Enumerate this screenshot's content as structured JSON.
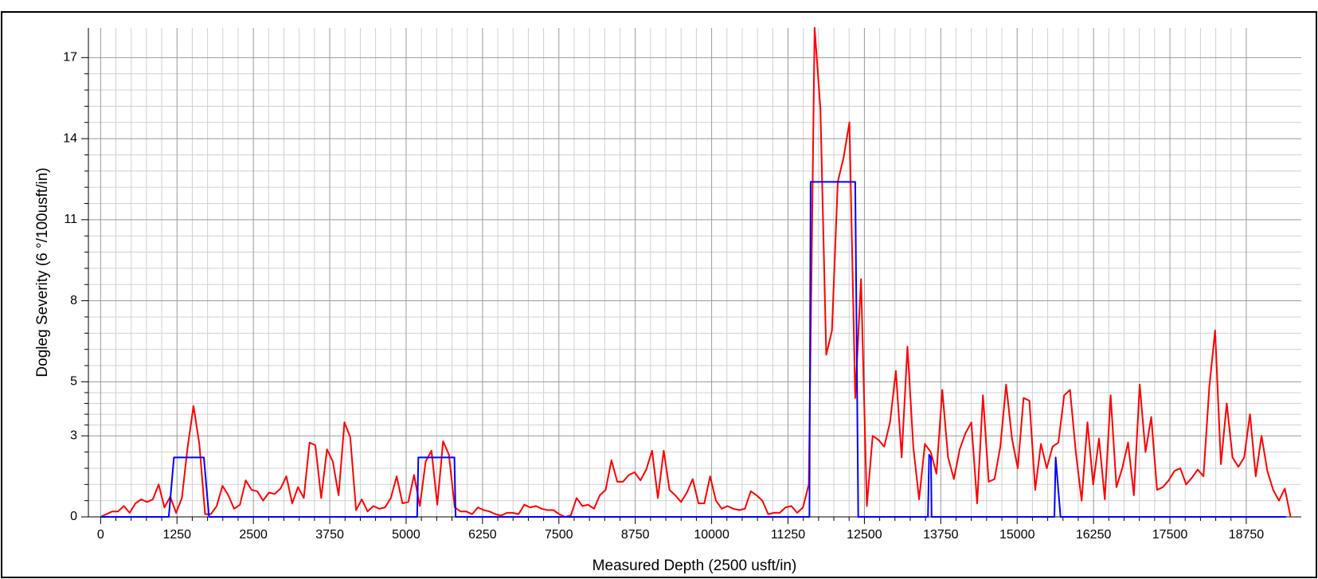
{
  "chart_data": {
    "type": "line",
    "xlabel": "Measured Depth (2500 usft/in)",
    "ylabel": "Dogleg Severity (6 °/100usft/in)",
    "xlim": [
      -200,
      19650
    ],
    "ylim": [
      0,
      18.1
    ],
    "xticks": [
      0,
      1250,
      2500,
      3750,
      5000,
      6250,
      7500,
      8750,
      10000,
      11250,
      12500,
      13750,
      15000,
      16250,
      17500,
      18750
    ],
    "yticks": [
      0,
      3,
      5,
      8,
      11,
      14,
      17
    ],
    "grid": true,
    "series": [
      {
        "color": "#ff0000",
        "x": [
          0,
          95,
          190,
          285,
          380,
          475,
          570,
          665,
          760,
          855,
          950,
          1045,
          1140,
          1235,
          1330,
          1425,
          1520,
          1615,
          1710,
          1805,
          1900,
          1995,
          2090,
          2185,
          2280,
          2375,
          2470,
          2565,
          2660,
          2755,
          2850,
          2945,
          3040,
          3135,
          3230,
          3325,
          3420,
          3515,
          3610,
          3705,
          3800,
          3895,
          3990,
          4085,
          4180,
          4275,
          4370,
          4465,
          4560,
          4655,
          4750,
          4845,
          4940,
          5035,
          5130,
          5225,
          5320,
          5415,
          5510,
          5605,
          5700,
          5795,
          5890,
          5985,
          6080,
          6175,
          6270,
          6365,
          6460,
          6555,
          6650,
          6745,
          6840,
          6935,
          7030,
          7125,
          7220,
          7315,
          7410,
          7505,
          7600,
          7695,
          7790,
          7885,
          7980,
          8075,
          8170,
          8265,
          8360,
          8455,
          8550,
          8645,
          8740,
          8835,
          8930,
          9025,
          9120,
          9215,
          9310,
          9405,
          9500,
          9595,
          9690,
          9785,
          9880,
          9975,
          10070,
          10165,
          10260,
          10355,
          10450,
          10545,
          10640,
          10735,
          10830,
          10925,
          11020,
          11115,
          11210,
          11305,
          11400,
          11495,
          11590,
          11685,
          11780,
          11875,
          11970,
          12065,
          12160,
          12255,
          12350,
          12445,
          12540,
          12635,
          12730,
          12825,
          12920,
          13015,
          13110,
          13205,
          13300,
          13395,
          13490,
          13585,
          13680,
          13775,
          13870,
          13965,
          14060,
          14155,
          14250,
          14345,
          14440,
          14535,
          14630,
          14725,
          14820,
          14915,
          15010,
          15105,
          15200,
          15295,
          15390,
          15485,
          15580,
          15675,
          15770,
          15865,
          15960,
          16055,
          16150,
          16245,
          16340,
          16435,
          16530,
          16625,
          16720,
          16815,
          16910,
          17005,
          17100,
          17195,
          17290,
          17385,
          17480,
          17575,
          17670,
          17765,
          17860,
          17955,
          18050,
          18145,
          18240,
          18335,
          18430,
          18525,
          18620,
          18715,
          18810,
          18905,
          19000,
          19095,
          19190,
          19285,
          19380,
          19475
        ],
        "values": [
          0,
          0.1,
          0.2,
          0.2,
          0.4,
          0.15,
          0.5,
          0.65,
          0.55,
          0.65,
          1.2,
          0.35,
          0.75,
          0.15,
          0.7,
          2.6,
          4.1,
          2.7,
          0.1,
          0.1,
          0.4,
          1.15,
          0.8,
          0.3,
          0.45,
          1.35,
          1.0,
          0.95,
          0.6,
          0.9,
          0.85,
          1.05,
          1.5,
          0.5,
          1.1,
          0.7,
          2.75,
          2.65,
          0.7,
          2.5,
          2.05,
          0.8,
          3.5,
          2.95,
          0.25,
          0.65,
          0.2,
          0.4,
          0.3,
          0.35,
          0.7,
          1.5,
          0.5,
          0.55,
          1.55,
          0.4,
          2.05,
          2.45,
          0.45,
          2.8,
          2.3,
          0.35,
          0.2,
          0.2,
          0.1,
          0.35,
          0.25,
          0.2,
          0.1,
          0.05,
          0.15,
          0.15,
          0.1,
          0.45,
          0.35,
          0.4,
          0.3,
          0.25,
          0.25,
          0.1,
          0,
          0.05,
          0.7,
          0.4,
          0.45,
          0.3,
          0.8,
          1.0,
          2.1,
          1.3,
          1.3,
          1.55,
          1.65,
          1.35,
          1.75,
          2.45,
          0.7,
          2.45,
          1.0,
          0.8,
          0.55,
          0.9,
          1.4,
          0.5,
          0.5,
          1.5,
          0.6,
          0.3,
          0.4,
          0.3,
          0.25,
          0.3,
          0.95,
          0.8,
          0.6,
          0.1,
          0.15,
          0.15,
          0.35,
          0.4,
          0.15,
          0.35,
          1.2,
          18.1,
          15.1,
          6.0,
          6.9,
          12.4,
          13.3,
          14.6,
          4.4,
          8.8,
          0.4,
          3.0,
          2.85,
          2.6,
          3.5,
          5.4,
          2.2,
          6.3,
          2.6,
          0.65,
          2.7,
          2.4,
          1.6,
          4.7,
          2.2,
          1.4,
          2.5,
          3.1,
          3.5,
          0.5,
          4.5,
          1.3,
          1.4,
          2.6,
          4.9,
          2.9,
          1.8,
          4.4,
          4.3,
          1.0,
          2.7,
          1.8,
          2.6,
          2.75,
          4.5,
          4.7,
          2.4,
          0.6,
          3.5,
          1.2,
          2.9,
          0.65,
          4.5,
          1.1,
          1.8,
          2.75,
          0.8,
          4.9,
          2.4,
          3.7,
          1.0,
          1.1,
          1.35,
          1.7,
          1.8,
          1.2,
          1.45,
          1.75,
          1.5,
          4.8,
          6.9,
          1.95,
          4.2,
          2.2,
          1.85,
          2.2,
          3.8,
          1.5,
          3.0,
          1.7,
          1.0,
          0.6,
          1.05,
          0
        ]
      },
      {
        "color": "#0000ff",
        "x": [
          0,
          1115,
          1200,
          1690,
          1775,
          5180,
          5200,
          5790,
          5810,
          11600,
          11620,
          12350,
          12400,
          13540,
          13560,
          13590,
          13600,
          15610,
          15630,
          15710,
          19400
        ],
        "values": [
          0,
          0,
          2.2,
          2.2,
          0,
          0,
          2.2,
          2.2,
          0,
          0,
          12.4,
          12.4,
          0,
          0,
          2.3,
          2.2,
          0,
          0,
          2.2,
          0,
          0
        ]
      }
    ]
  }
}
